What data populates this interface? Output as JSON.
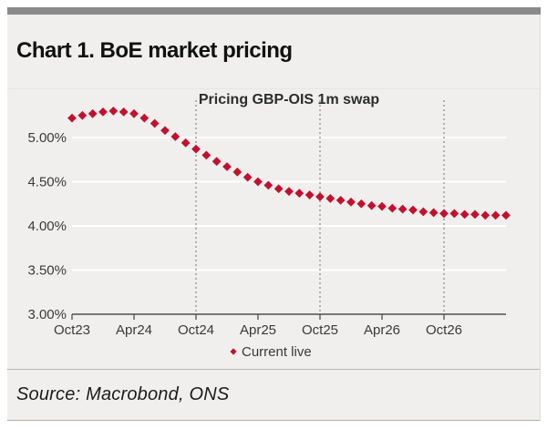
{
  "page": {
    "title": "Chart 1. BoE market pricing",
    "source": "Source: Macrobond, ONS"
  },
  "chart_data": {
    "type": "scatter",
    "title": "Pricing GBP-OIS 1m swap",
    "legend": {
      "label": "Current live",
      "position": "bottom-center",
      "marker": "diamond"
    },
    "x": [
      "Oct23",
      "Nov23",
      "Dec23",
      "Jan24",
      "Feb24",
      "Mar24",
      "Apr24",
      "May24",
      "Jun24",
      "Jul24",
      "Aug24",
      "Sep24",
      "Oct24",
      "Nov24",
      "Dec24",
      "Jan25",
      "Feb25",
      "Mar25",
      "Apr25",
      "May25",
      "Jun25",
      "Jul25",
      "Aug25",
      "Sep25",
      "Oct25",
      "Nov25",
      "Dec25",
      "Jan26",
      "Feb26",
      "Mar26",
      "Apr26",
      "May26",
      "Jun26",
      "Jul26",
      "Aug26",
      "Sep26",
      "Oct26",
      "Nov26",
      "Dec26",
      "Jan27",
      "Feb27",
      "Mar27",
      "Apr27"
    ],
    "series": [
      {
        "name": "Current live",
        "values": [
          5.22,
          5.25,
          5.27,
          5.29,
          5.3,
          5.29,
          5.27,
          5.22,
          5.16,
          5.08,
          5.01,
          4.94,
          4.87,
          4.8,
          4.73,
          4.67,
          4.61,
          4.55,
          4.5,
          4.46,
          4.42,
          4.39,
          4.37,
          4.35,
          4.33,
          4.31,
          4.29,
          4.27,
          4.25,
          4.23,
          4.22,
          4.2,
          4.19,
          4.18,
          4.16,
          4.15,
          4.14,
          4.14,
          4.13,
          4.13,
          4.12,
          4.12,
          4.12
        ]
      }
    ],
    "xticks": [
      "Oct23",
      "Apr24",
      "Oct24",
      "Apr25",
      "Oct25",
      "Apr26",
      "Oct26"
    ],
    "yticks": [
      "5.00%",
      "4.50%",
      "4.00%",
      "3.50%",
      "3.00%"
    ],
    "ytick_values": [
      5.0,
      4.5,
      4.0,
      3.5,
      3.0
    ],
    "ylim": [
      3.0,
      5.55
    ],
    "dashed_vlines": [
      "Oct24",
      "Oct25",
      "Oct26"
    ],
    "grid": "horizontal white gridlines on",
    "colors": {
      "marker": "#c2112e",
      "gridline": "#ffffff",
      "axis": "#4f4f4f",
      "dashed_line": "#8f8f8f",
      "tick_text": "#3a3a3a",
      "subtitle_text": "#2d2d2d",
      "panel_bg": "#f0efed",
      "top_bar": "#8a8a8a"
    }
  }
}
